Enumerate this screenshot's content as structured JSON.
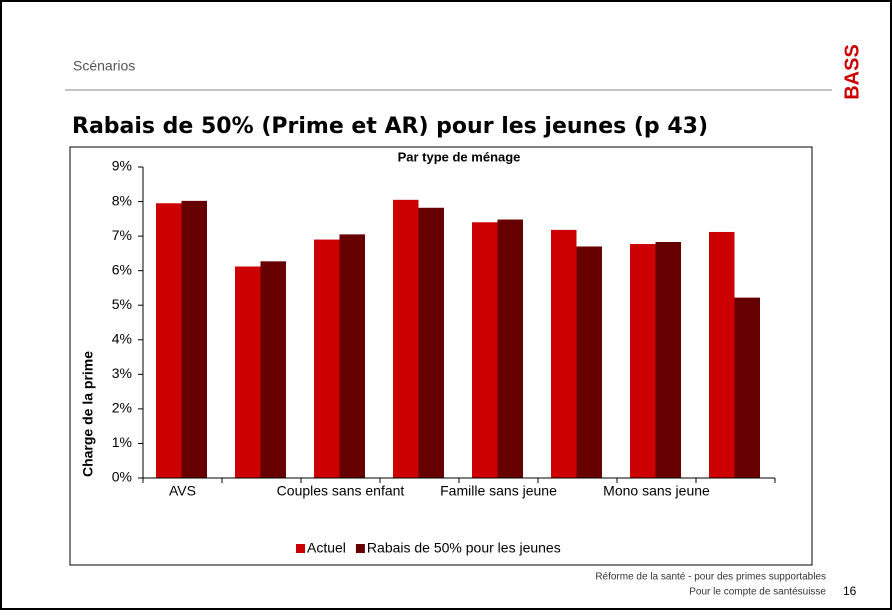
{
  "header": {
    "section": "Scénarios",
    "logo": "BASS"
  },
  "slide": {
    "title": "Rabais de 50% (Prime et AR) pour les jeunes (p 43)"
  },
  "chart_data": {
    "type": "bar",
    "title": "Par type de ménage",
    "y_label": "Charge de la prime",
    "categories": [
      "AVS",
      null,
      "Couples sans enfant",
      null,
      "Famille sans jeune",
      null,
      "Mono sans jeune",
      null
    ],
    "series": [
      {
        "name": "Actuel",
        "color": "#cc0000",
        "values": [
          7.95,
          6.12,
          6.9,
          8.05,
          7.4,
          7.18,
          6.77,
          7.12
        ]
      },
      {
        "name": "Rabais de 50% pour les jeunes",
        "color": "#660000",
        "values": [
          8.02,
          6.27,
          7.05,
          7.82,
          7.48,
          6.7,
          6.83,
          5.22
        ]
      }
    ],
    "ylim": [
      0,
      9
    ],
    "yticks": [
      {
        "value": 0,
        "label": "0%"
      },
      {
        "value": 1,
        "label": "1%"
      },
      {
        "value": 2,
        "label": "2%"
      },
      {
        "value": 3,
        "label": "3%"
      },
      {
        "value": 4,
        "label": "4%"
      },
      {
        "value": 5,
        "label": "5%"
      },
      {
        "value": 6,
        "label": "6%"
      },
      {
        "value": 7,
        "label": "7%"
      },
      {
        "value": 8,
        "label": "8%"
      },
      {
        "value": 9,
        "label": "9%"
      }
    ],
    "grid": false,
    "legend": "bottom"
  },
  "footer": {
    "lines": [
      "Réforme de la santé - pour des primes supportables",
      "Pour le compte de santésuisse"
    ],
    "page": "16"
  }
}
